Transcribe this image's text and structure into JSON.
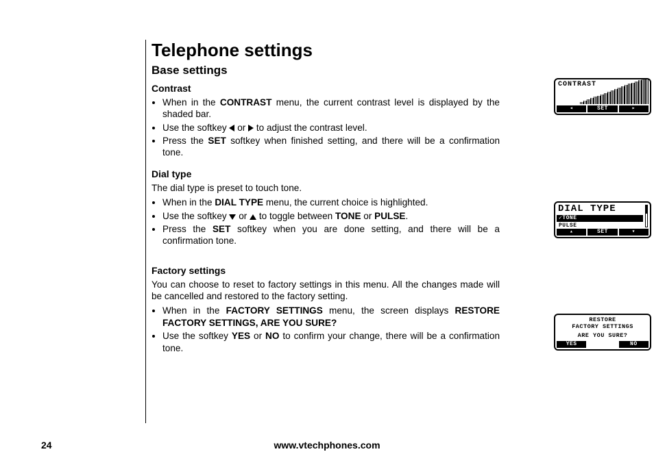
{
  "page": {
    "number": "24",
    "footer_url": "www.vtechphones.com",
    "title": "Telephone settings",
    "subtitle": "Base settings"
  },
  "contrast": {
    "heading": "Contrast",
    "b1_pre": "When in the ",
    "b1_bold": "CONTRAST",
    "b1_post": " menu, the current contrast level is displayed by the shaded bar.",
    "b2_pre": "Use the softkey ",
    "b2_mid": " or ",
    "b2_post": "  to adjust the contrast level.",
    "b3_pre": "Press the ",
    "b3_bold": "SET",
    "b3_post": " softkey when finished setting, and there will be a confirmation tone."
  },
  "dial": {
    "heading": "Dial type",
    "intro": "The dial type is preset to touch tone.",
    "b1_pre": "When in the ",
    "b1_bold": "DIAL TYPE",
    "b1_post": " menu, the current choice is highlighted.",
    "b2_pre": "Use the softkey ",
    "b2_mid": " or ",
    "b2_post1": " to toggle between ",
    "b2_bold1": "TONE",
    "b2_post2": " or ",
    "b2_bold2": "PULSE",
    "b2_post3": ".",
    "b3_pre": "Press the ",
    "b3_bold": "SET",
    "b3_post": " softkey when you are done setting, and there will be a confirmation tone."
  },
  "factory": {
    "heading": "Factory settings",
    "intro": "You can choose to reset to factory settings in this menu. All the changes made will be cancelled and restored to the factory setting.",
    "b1_pre": "When in the ",
    "b1_bold1": "FACTORY SETTINGS",
    "b1_mid": " menu, the screen displays ",
    "b1_bold2": "RESTORE FACTORY SETTINGS,   ARE YOU SURE?",
    "b2_pre": "Use the softkey ",
    "b2_bold1": "YES",
    "b2_mid": " or ",
    "b2_bold2": "NO",
    "b2_post": " to confirm your change, there will be a confirmation tone."
  },
  "lcd_contrast": {
    "label": "CONTRAST",
    "soft_left": "◂",
    "soft_mid": "SET",
    "soft_right": "▸",
    "bars": 20,
    "max_height": 36,
    "bar_x_start": 36,
    "bar_color": "#000000"
  },
  "lcd_dial": {
    "title": "DIAL TYPE",
    "options": [
      {
        "label": "TONE",
        "selected": true
      },
      {
        "label": "PULSE",
        "selected": false
      }
    ],
    "soft_left": "▴",
    "soft_mid": "SET",
    "soft_right": "▾"
  },
  "lcd_factory": {
    "line1": "RESTORE",
    "line2": "FACTORY SETTINGS",
    "question": "ARE YOU SURE?",
    "soft_left": "YES",
    "soft_right": "NO"
  }
}
